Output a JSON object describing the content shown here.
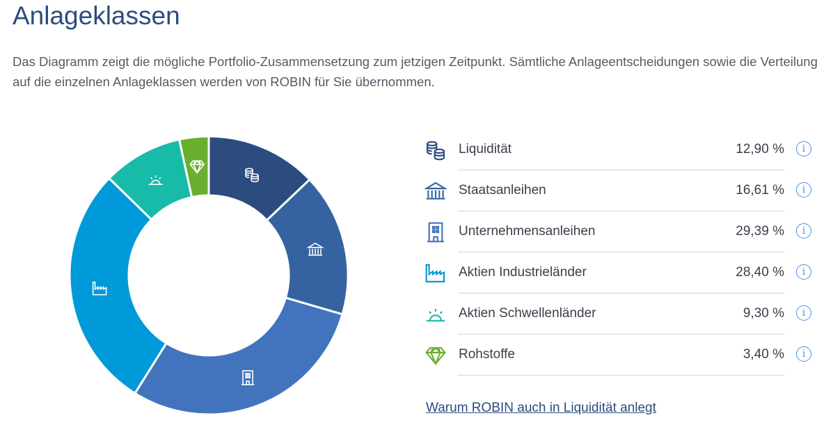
{
  "title": "Anlageklassen",
  "description": "Das Diagramm zeigt die mögliche Portfolio-Zusammensetzung zum jetzigen Zeitpunkt. Sämtliche Anlageentscheidungen sowie die Verteilung auf die einzelnen Anlageklassen werden von ROBIN für Sie übernommen.",
  "link_label": "Warum ROBIN auch in Liquidität anlegt",
  "info_glyph": "i",
  "chart_data": {
    "type": "pie",
    "variant": "donut",
    "categories": [
      "Liquidität",
      "Staatsanleihen",
      "Unternehmensanleihen",
      "Aktien Industrieländer",
      "Aktien Schwellenländer",
      "Rohstoffe"
    ],
    "values": [
      12.9,
      16.61,
      29.39,
      28.4,
      9.3,
      3.4
    ],
    "value_labels": [
      "12,90 %",
      "16,61 %",
      "29,39 %",
      "28,40 %",
      "9,30 %",
      "3,40 %"
    ],
    "colors": [
      "#2c4c7f",
      "#3563a1",
      "#4274bd",
      "#0099d9",
      "#17bba8",
      "#6aaf2e"
    ],
    "icons": [
      "coins-icon",
      "bank-icon",
      "office-building-icon",
      "factory-icon",
      "sunrise-icon",
      "diamond-icon"
    ]
  }
}
